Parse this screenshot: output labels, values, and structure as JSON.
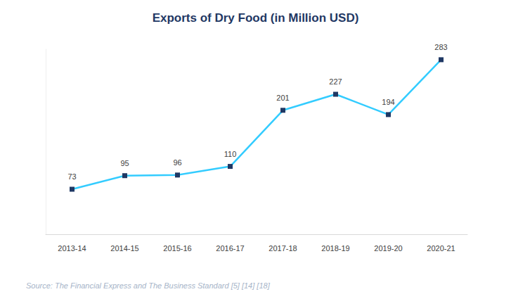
{
  "chart_data": {
    "type": "line",
    "title": "Exports of Dry Food (in Million USD)",
    "annotation": "Source: The Financial Express and The Business Standard [5] [14] [18]",
    "categories": [
      "2013-14",
      "2014-15",
      "2015-16",
      "2016-17",
      "2017-18",
      "2018-19",
      "2019-20",
      "2020-21"
    ],
    "values": [
      73,
      95,
      96,
      110,
      201,
      227,
      194,
      283
    ],
    "color": "#33CCFF",
    "marker": "square",
    "ylim": [
      0,
      300
    ],
    "grid": false,
    "data_labels": true,
    "tick_labels": "x"
  }
}
